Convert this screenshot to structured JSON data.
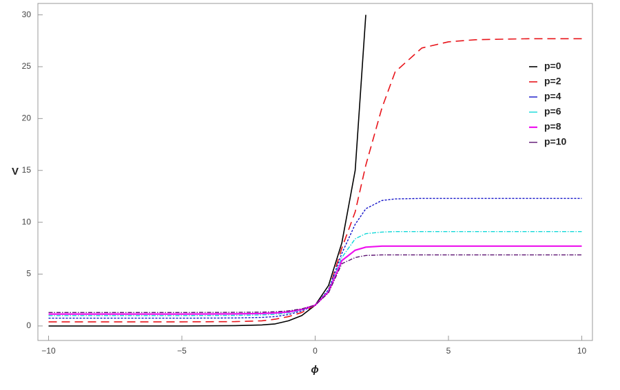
{
  "chart_data": {
    "type": "line",
    "xlabel": "ϕ",
    "ylabel": "V",
    "x": [
      -10,
      -5,
      -3,
      -2,
      -1.5,
      -1,
      -0.5,
      0,
      0.5,
      1,
      1.5,
      1.9,
      2.5,
      3,
      4,
      5,
      6,
      7,
      8,
      10
    ],
    "series": [
      {
        "name": "p=0",
        "color": "#000000",
        "dash": "none",
        "width": 1.6,
        "values": [
          0,
          0,
          0.03,
          0.1,
          0.2,
          0.5,
          1.0,
          2,
          3.9,
          8,
          15,
          30,
          null,
          null,
          null,
          null,
          null,
          null,
          null,
          null
        ]
      },
      {
        "name": "p=2",
        "color": "#e8141a",
        "dash": "12 7",
        "width": 1.6,
        "values": [
          0.4,
          0.4,
          0.42,
          0.5,
          0.65,
          0.9,
          1.3,
          2,
          3.4,
          7.5,
          11,
          15.5,
          21,
          24.5,
          26.8,
          27.4,
          27.6,
          27.65,
          27.7,
          27.7
        ]
      },
      {
        "name": "p=4",
        "color": "#1010c8",
        "dash": "3 2",
        "width": 1.4,
        "values": [
          0.75,
          0.75,
          0.77,
          0.82,
          0.9,
          1.1,
          1.45,
          2,
          3.5,
          7,
          9.8,
          11.3,
          12.1,
          12.25,
          12.3,
          12.3,
          12.3,
          12.3,
          12.3,
          12.3
        ]
      },
      {
        "name": "p=6",
        "color": "#10d8d8",
        "dash": "6 2 1.5 2",
        "width": 1.4,
        "values": [
          1.0,
          1.0,
          1.02,
          1.06,
          1.12,
          1.25,
          1.55,
          2,
          3.4,
          6.6,
          8.4,
          8.9,
          9.05,
          9.1,
          9.1,
          9.1,
          9.1,
          9.1,
          9.1,
          9.1
        ]
      },
      {
        "name": "p=8",
        "color": "#ee10ee",
        "dash": "none",
        "width": 2.2,
        "values": [
          1.15,
          1.15,
          1.16,
          1.2,
          1.25,
          1.35,
          1.6,
          2,
          3.3,
          6.3,
          7.3,
          7.6,
          7.7,
          7.7,
          7.7,
          7.7,
          7.7,
          7.7,
          7.7,
          7.7
        ]
      },
      {
        "name": "p=10",
        "color": "#5a1070",
        "dash": "6 2 1.5 2",
        "width": 1.4,
        "values": [
          1.3,
          1.3,
          1.31,
          1.33,
          1.37,
          1.45,
          1.65,
          2,
          3.2,
          6,
          6.6,
          6.8,
          6.85,
          6.85,
          6.85,
          6.85,
          6.85,
          6.85,
          6.85,
          6.85
        ]
      }
    ],
    "xlim": [
      -10.4,
      10.4
    ],
    "ylim": [
      -1.4,
      31.1
    ],
    "xticks": [
      {
        "value": -10,
        "label": "−10"
      },
      {
        "value": -5,
        "label": "−5"
      },
      0,
      5,
      10
    ],
    "yticks": [
      0,
      5,
      10,
      15,
      20,
      25,
      30
    ],
    "legend": "upper-right"
  }
}
